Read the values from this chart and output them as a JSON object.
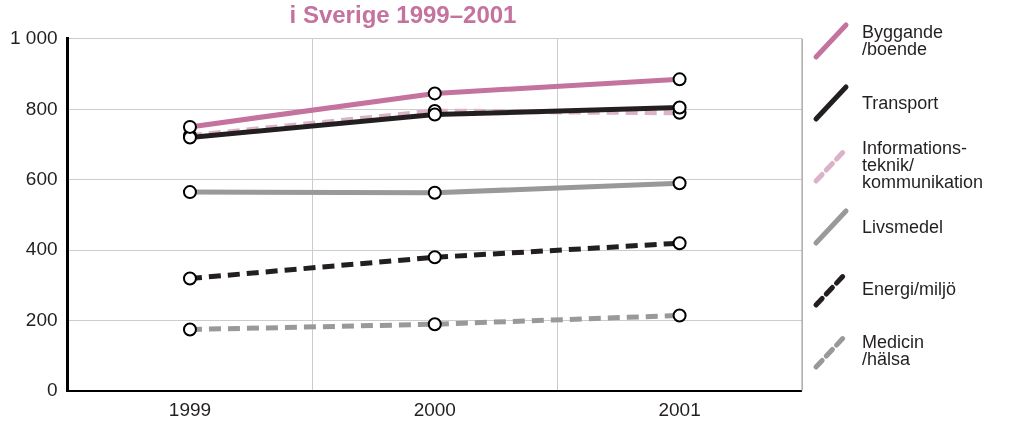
{
  "chart_data": {
    "type": "line",
    "title": "i Sverige 1999–2001",
    "categories": [
      "1999",
      "2000",
      "2001"
    ],
    "series": [
      {
        "name": "Byggande\n/boende",
        "color": "#c4729e",
        "values": [
          750,
          845,
          885
        ],
        "line_style": "solid"
      },
      {
        "name": "Transport",
        "color": "#231f20",
        "values": [
          720,
          785,
          805
        ],
        "line_style": "solid"
      },
      {
        "name": "Informations-\nteknik/\nkommunikation",
        "color": "#dbb3c8",
        "values": [
          725,
          795,
          790
        ],
        "line_style": "dashed"
      },
      {
        "name": "Livsmedel",
        "color": "#999999",
        "values": [
          565,
          563,
          590
        ],
        "line_style": "solid"
      },
      {
        "name": "Energi/miljö",
        "color": "#231f20",
        "values": [
          320,
          380,
          420
        ],
        "line_style": "dashed"
      },
      {
        "name": "Medicin\n/hälsa",
        "color": "#999999",
        "values": [
          175,
          190,
          215
        ],
        "line_style": "dashed"
      }
    ],
    "ylim": [
      0,
      1000
    ],
    "yticks": [
      0,
      200,
      400,
      600,
      800,
      {
        "value": 1000,
        "label": "1 000"
      }
    ],
    "grid": true,
    "legend": "right",
    "marker": "circle"
  }
}
